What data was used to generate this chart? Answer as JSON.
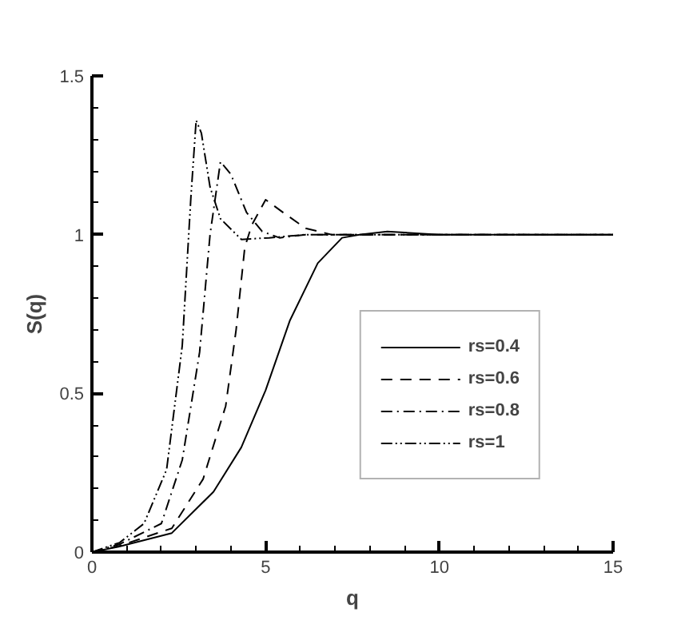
{
  "chart_data": {
    "type": "line",
    "xlabel": "q",
    "ylabel": "S(q)",
    "xlim": [
      0,
      15
    ],
    "ylim": [
      0,
      1.5
    ],
    "xticks": [
      0,
      5,
      10,
      15
    ],
    "yticks": [
      0,
      0.5,
      1,
      1.5
    ],
    "grid": false,
    "legend": "bottom right",
    "marker": "none",
    "series": [
      {
        "name": "rs=0.4",
        "color": "#000000",
        "line_style": "solid",
        "x": [
          0,
          0.77,
          2.3,
          3.5,
          4.3,
          5.0,
          5.7,
          6.5,
          7.2,
          7.7,
          8.5,
          10,
          15
        ],
        "values": [
          0,
          0.017,
          0.06,
          0.19,
          0.33,
          0.51,
          0.73,
          0.91,
          0.99,
          1.0,
          1.01,
          1.0,
          1.0
        ]
      },
      {
        "name": "rs=0.6",
        "color": "#000000",
        "line_style": "dashed",
        "x": [
          0,
          0.8,
          2.3,
          3.2,
          3.85,
          4.15,
          4.4,
          4.6,
          5.0,
          5.5,
          6.15,
          6.9,
          10,
          15
        ],
        "values": [
          0,
          0.02,
          0.075,
          0.23,
          0.46,
          0.7,
          0.96,
          1.03,
          1.11,
          1.07,
          1.02,
          1.0,
          1.0,
          1.0
        ]
      },
      {
        "name": "rs=0.8",
        "color": "#000000",
        "line_style": "dashdot",
        "x": [
          0,
          0.8,
          2.0,
          2.6,
          3.1,
          3.4,
          3.7,
          4.0,
          4.45,
          4.9,
          5.4,
          6.15,
          10,
          15
        ],
        "values": [
          0,
          0.025,
          0.09,
          0.29,
          0.63,
          1.0,
          1.23,
          1.19,
          1.07,
          1.01,
          0.99,
          1.0,
          1.0,
          1.0
        ]
      },
      {
        "name": "rs=1",
        "color": "#000000",
        "line_style": "dashdotdot",
        "x": [
          0,
          0.8,
          1.5,
          2.15,
          2.6,
          2.85,
          3.0,
          3.15,
          3.4,
          3.7,
          4.3,
          5.1,
          6.15,
          10,
          15
        ],
        "values": [
          0,
          0.03,
          0.09,
          0.26,
          0.65,
          1.12,
          1.36,
          1.32,
          1.15,
          1.05,
          0.985,
          0.99,
          1.0,
          1.0,
          1.0
        ]
      }
    ]
  }
}
